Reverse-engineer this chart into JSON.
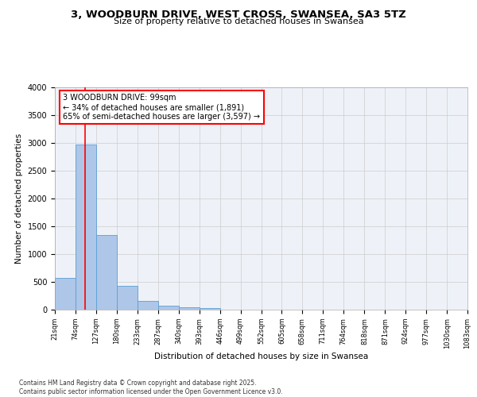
{
  "title": "3, WOODBURN DRIVE, WEST CROSS, SWANSEA, SA3 5TZ",
  "subtitle": "Size of property relative to detached houses in Swansea",
  "xlabel": "Distribution of detached houses by size in Swansea",
  "ylabel": "Number of detached properties",
  "bar_edges": [
    21,
    74,
    127,
    180,
    233,
    287,
    340,
    393,
    446,
    499,
    552,
    605,
    658,
    711,
    764,
    818,
    871,
    924,
    977,
    1030,
    1083
  ],
  "bar_heights": [
    575,
    2970,
    1340,
    430,
    155,
    75,
    45,
    35,
    0,
    0,
    0,
    0,
    0,
    0,
    0,
    0,
    0,
    0,
    0,
    0
  ],
  "bar_color": "#aec6e8",
  "bar_edge_color": "#5a9fd4",
  "grid_color": "#cccccc",
  "bg_color": "#eef2f8",
  "vline_x": 99,
  "vline_color": "red",
  "annotation_line1": "3 WOODBURN DRIVE: 99sqm",
  "annotation_line2": "← 34% of detached houses are smaller (1,891)",
  "annotation_line3": "65% of semi-detached houses are larger (3,597) →",
  "footer": "Contains HM Land Registry data © Crown copyright and database right 2025.\nContains public sector information licensed under the Open Government Licence v3.0.",
  "ylim": [
    0,
    4000
  ],
  "yticks": [
    0,
    500,
    1000,
    1500,
    2000,
    2500,
    3000,
    3500,
    4000
  ],
  "tick_labels": [
    "21sqm",
    "74sqm",
    "127sqm",
    "180sqm",
    "233sqm",
    "287sqm",
    "340sqm",
    "393sqm",
    "446sqm",
    "499sqm",
    "552sqm",
    "605sqm",
    "658sqm",
    "711sqm",
    "764sqm",
    "818sqm",
    "871sqm",
    "924sqm",
    "977sqm",
    "1030sqm",
    "1083sqm"
  ]
}
